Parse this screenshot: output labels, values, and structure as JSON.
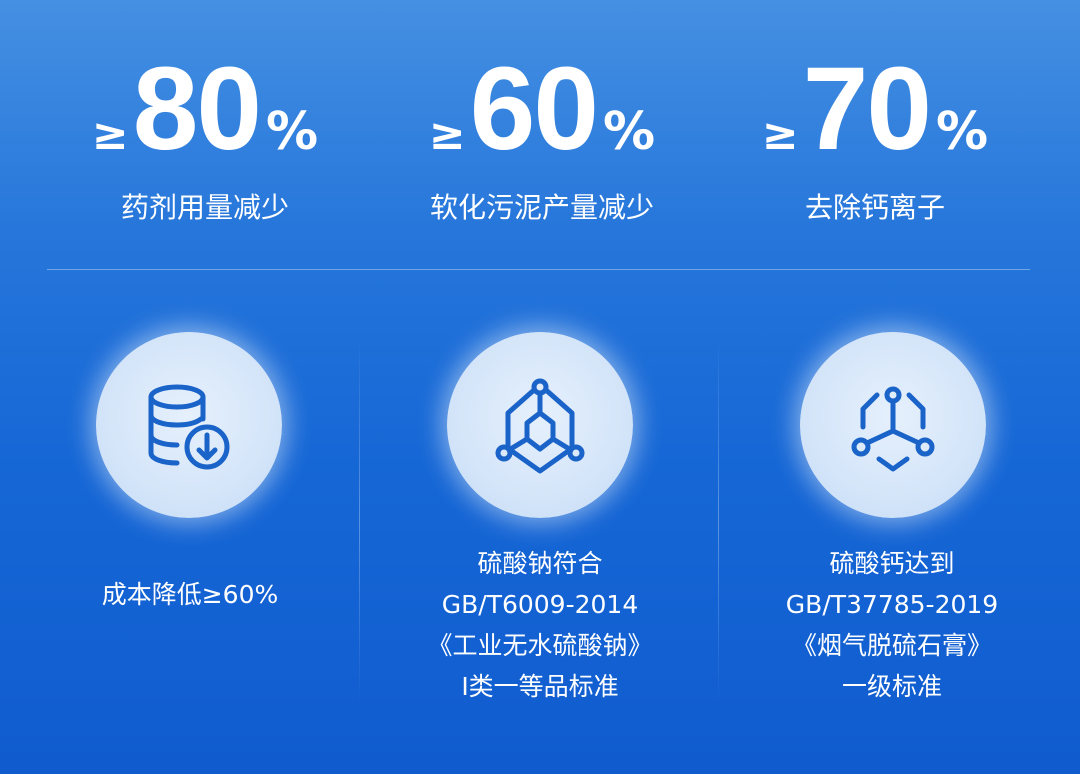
{
  "stats": [
    {
      "prefix": "≥",
      "value": "80",
      "unit": "%",
      "label": "药剂用量减少"
    },
    {
      "prefix": "≥",
      "value": "60",
      "unit": "%",
      "label": "软化污泥产量减少"
    },
    {
      "prefix": "≥",
      "value": "70",
      "unit": "%",
      "label": "去除钙离子"
    }
  ],
  "features": [
    {
      "icon": "database-download-icon",
      "lines": [
        "成本降低≥60%"
      ]
    },
    {
      "icon": "molecule-hexagon-icon",
      "lines": [
        "硫酸钠符合",
        "GB/T6009-2014",
        "《工业无水硫酸钠》",
        "I类一等品标准"
      ]
    },
    {
      "icon": "molecule-network-icon",
      "lines": [
        "硫酸钙达到",
        "GB/T37785-2019",
        "《烟气脱硫石膏》",
        "一级标准"
      ]
    }
  ],
  "colors": {
    "icon": "#1a63c8",
    "background_top": "#4590e2",
    "background_bottom": "#105ccf"
  }
}
